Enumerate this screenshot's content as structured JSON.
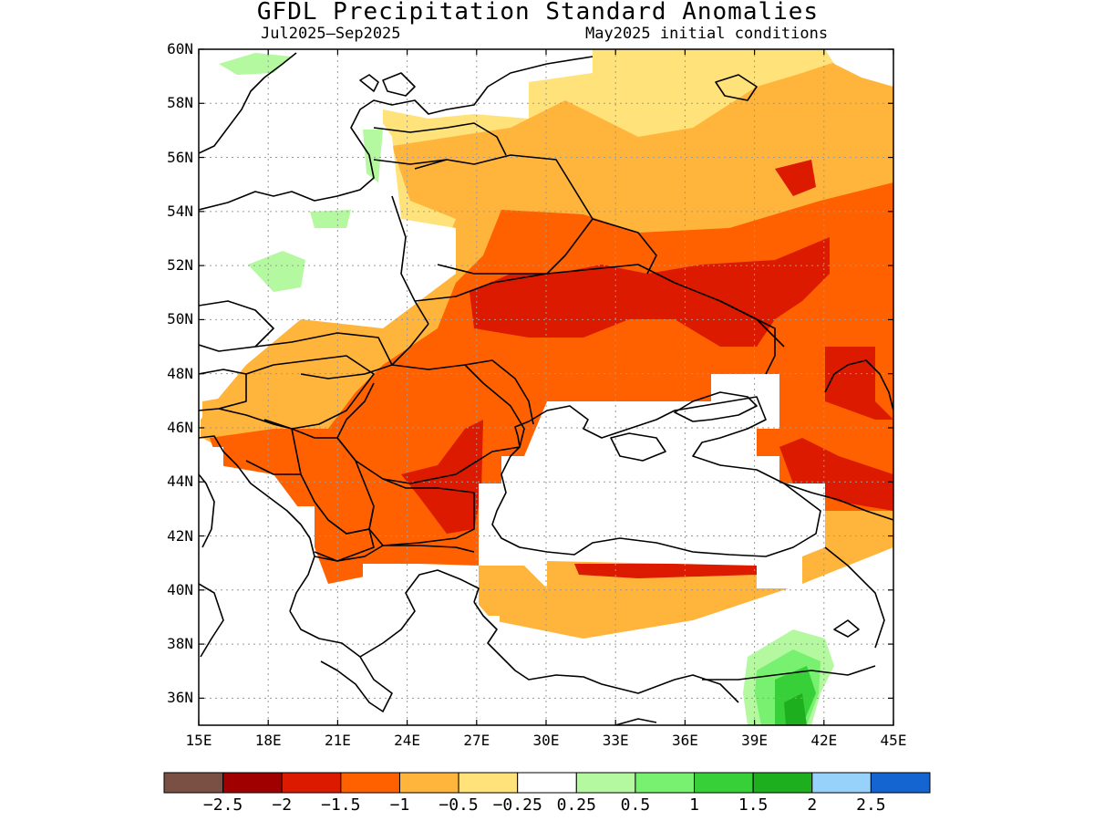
{
  "title": "GFDL Precipitation Standard Anomalies",
  "subtitle_left": "Jul2025–Sep2025",
  "subtitle_right": "May2025 initial conditions",
  "map": {
    "lat_range": [
      35,
      60
    ],
    "lon_range": [
      15,
      45
    ],
    "grid": true,
    "lat_labels": [
      "60N",
      "58N",
      "56N",
      "54N",
      "52N",
      "50N",
      "48N",
      "46N",
      "44N",
      "42N",
      "40N",
      "38N",
      "36N"
    ],
    "lon_labels": [
      "15E",
      "18E",
      "21E",
      "24E",
      "27E",
      "30E",
      "33E",
      "36E",
      "39E",
      "42E",
      "45E"
    ]
  },
  "colorbar": {
    "colors": [
      "#7b5044",
      "#a00000",
      "#dc1a00",
      "#ff6000",
      "#ffb43c",
      "#ffe27a",
      "#ffffff",
      "#b4f8a0",
      "#78f070",
      "#38d038",
      "#1eaf1e",
      "#96d2fa",
      "#1464d2"
    ],
    "labels": [
      "−2.5",
      "−2",
      "−1.5",
      "−1",
      "−0.5",
      "−0.25",
      "0.25",
      "0.5",
      "1",
      "1.5",
      "2",
      "2.5"
    ]
  },
  "colors": {
    "neg_025_05": "#ffe27a",
    "neg_05_1": "#ffb43c",
    "neg_1_15": "#ff6000",
    "neg_15_2": "#dc1a00",
    "pos_025_05": "#b4f8a0",
    "pos_05_1": "#78f070",
    "pos_1_15": "#38d038",
    "pos_15_2": "#1eaf1e"
  }
}
